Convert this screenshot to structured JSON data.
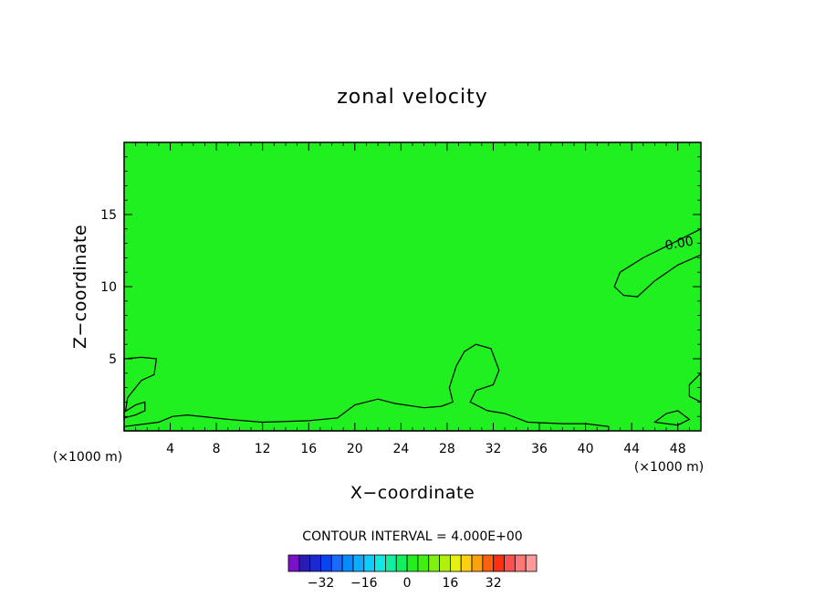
{
  "chart_data": {
    "type": "heatmap",
    "title": "zonal velocity",
    "xlabel": "X−coordinate",
    "ylabel": "Z−coordinate",
    "x_unit_left": "(×1000 m)",
    "x_unit_right": "(×1000 m)",
    "xlim": [
      0,
      50
    ],
    "ylim": [
      0,
      20
    ],
    "x_ticks": [
      4,
      8,
      12,
      16,
      20,
      24,
      28,
      32,
      36,
      40,
      44,
      48
    ],
    "y_ticks": [
      5,
      10,
      15
    ],
    "background_value": 0,
    "contour_label": "0.00",
    "contour_interval_text": "CONTOUR INTERVAL = 4.000E+00",
    "colorbar": {
      "colors": [
        "#7a10c8",
        "#2a1ab8",
        "#1a2ad0",
        "#0a44f0",
        "#1a6aff",
        "#0a8aff",
        "#10aaff",
        "#10ccff",
        "#10e8e0",
        "#10f0a0",
        "#10f060",
        "#20f020",
        "#40f010",
        "#80f010",
        "#b0f010",
        "#e8f010",
        "#ffd010",
        "#ffa010",
        "#ff6010",
        "#ff3010",
        "#ff5050",
        "#ff7878",
        "#ff9a9a"
      ],
      "tick_labels": [
        "−32",
        "−16",
        "0",
        "16",
        "32"
      ],
      "tick_values": [
        -32,
        -16,
        0,
        16,
        32
      ],
      "vmin": -44,
      "vmax": 48
    },
    "regions": [
      {
        "name": "upper-right-jet",
        "value": 2,
        "outline": [
          [
            43.3,
            9.4
          ],
          [
            42.5,
            10.0
          ],
          [
            43.0,
            11.0
          ],
          [
            45.0,
            12.0
          ],
          [
            47.0,
            12.8
          ],
          [
            50.0,
            14.0
          ],
          [
            50.0,
            12.2
          ],
          [
            48.0,
            11.5
          ],
          [
            46.0,
            10.4
          ],
          [
            44.5,
            9.3
          ]
        ]
      },
      {
        "name": "left-edge-lobe",
        "value": 2,
        "outline": [
          [
            0.0,
            0.7
          ],
          [
            0.0,
            5.0
          ],
          [
            1.5,
            5.1
          ],
          [
            2.8,
            5.0
          ],
          [
            2.6,
            3.9
          ],
          [
            1.5,
            3.5
          ],
          [
            0.8,
            2.8
          ],
          [
            0.3,
            2.3
          ]
        ]
      },
      {
        "name": "left-low-lobe",
        "value": 2,
        "outline": [
          [
            0.0,
            1.3
          ],
          [
            1.0,
            1.8
          ],
          [
            1.8,
            2.0
          ],
          [
            1.8,
            1.4
          ],
          [
            1.0,
            1.1
          ],
          [
            0.0,
            0.9
          ]
        ]
      },
      {
        "name": "surface-band",
        "value": 2,
        "outline": [
          [
            0.0,
            0.3
          ],
          [
            3.0,
            0.6
          ],
          [
            4.2,
            1.0
          ],
          [
            5.5,
            1.1
          ],
          [
            9.0,
            0.8
          ],
          [
            12.0,
            0.6
          ],
          [
            16.0,
            0.7
          ],
          [
            18.5,
            0.9
          ],
          [
            20.0,
            1.8
          ],
          [
            22.0,
            2.2
          ],
          [
            23.5,
            1.9
          ],
          [
            26.0,
            1.6
          ],
          [
            27.5,
            1.7
          ],
          [
            28.5,
            2.0
          ],
          [
            28.2,
            3.0
          ],
          [
            28.8,
            4.5
          ],
          [
            29.5,
            5.5
          ],
          [
            30.5,
            6.0
          ],
          [
            31.8,
            5.7
          ],
          [
            32.5,
            4.2
          ],
          [
            32.0,
            3.2
          ],
          [
            30.5,
            2.8
          ],
          [
            30.0,
            2.0
          ],
          [
            31.5,
            1.4
          ],
          [
            33.0,
            1.2
          ],
          [
            35.0,
            0.6
          ],
          [
            38.0,
            0.5
          ],
          [
            40.0,
            0.5
          ],
          [
            42.0,
            0.3
          ],
          [
            42.0,
            0.0
          ],
          [
            0.0,
            0.0
          ]
        ]
      },
      {
        "name": "right-low-lobe",
        "value": 2,
        "outline": [
          [
            46.0,
            0.6
          ],
          [
            47.0,
            1.2
          ],
          [
            48.0,
            1.4
          ],
          [
            49.0,
            0.8
          ],
          [
            48.0,
            0.4
          ]
        ]
      },
      {
        "name": "right-edge-lobe",
        "value": 2,
        "outline": [
          [
            50.0,
            2.0
          ],
          [
            49.0,
            2.4
          ],
          [
            49.0,
            3.2
          ],
          [
            50.0,
            4.0
          ]
        ]
      }
    ]
  }
}
